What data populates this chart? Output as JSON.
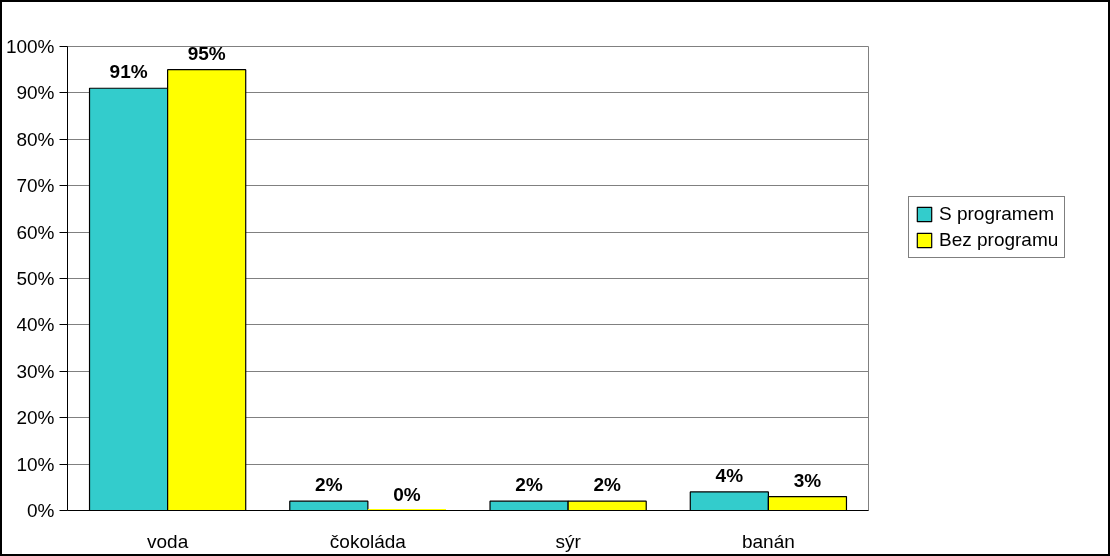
{
  "chart_data": {
    "type": "bar",
    "categories": [
      "voda",
      "čokoláda",
      "sýr",
      "banán"
    ],
    "series": [
      {
        "name": "S programem",
        "color": "#33cccc",
        "values": [
          91,
          2,
          2,
          4
        ],
        "value_labels": [
          "91%",
          "2%",
          "2%",
          "4%"
        ]
      },
      {
        "name": "Bez programu",
        "color": "#ffff00",
        "values": [
          95,
          0,
          2,
          3
        ],
        "value_labels": [
          "95%",
          "0%",
          "2%",
          "3%"
        ]
      }
    ],
    "ylim": [
      0,
      100
    ],
    "yticks": [
      {
        "value": 0,
        "label": "0%"
      },
      {
        "value": 10,
        "label": "10%"
      },
      {
        "value": 20,
        "label": "20%"
      },
      {
        "value": 30,
        "label": "30%"
      },
      {
        "value": 40,
        "label": "40%"
      },
      {
        "value": 50,
        "label": "50%"
      },
      {
        "value": 60,
        "label": "60%"
      },
      {
        "value": 70,
        "label": "70%"
      },
      {
        "value": 80,
        "label": "80%"
      },
      {
        "value": 90,
        "label": "90%"
      },
      {
        "value": 100,
        "label": "100%"
      }
    ],
    "grid": "y",
    "legend": "right"
  }
}
